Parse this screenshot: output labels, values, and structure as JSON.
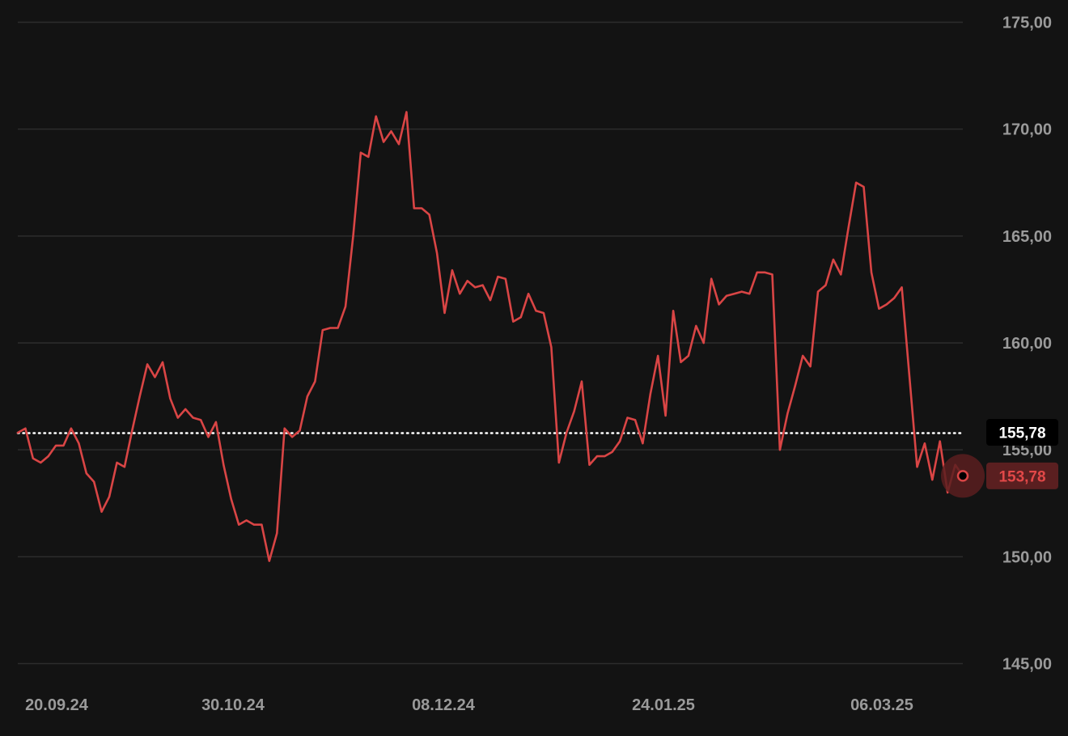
{
  "chart_data": {
    "type": "line",
    "x_ticks": [
      "20.09.24",
      "30.10.24",
      "08.12.24",
      "24.01.25",
      "06.03.25"
    ],
    "y_ticks": [
      "175,00",
      "170,00",
      "165,00",
      "160,00",
      "155,00",
      "150,00",
      "145,00"
    ],
    "ylim": [
      145,
      175
    ],
    "grid": true,
    "series": [
      {
        "values": [
          155.8,
          156.0,
          154.6,
          154.4,
          154.7,
          155.2,
          155.2,
          156.0,
          155.3,
          153.9,
          153.5,
          152.1,
          152.8,
          154.4,
          154.2,
          155.9,
          157.5,
          159.0,
          158.4,
          159.1,
          157.4,
          156.5,
          156.9,
          156.5,
          156.4,
          155.6,
          156.3,
          154.3,
          152.7,
          151.5,
          151.7,
          151.5,
          151.5,
          149.8,
          151.1,
          156.0,
          155.6,
          155.9,
          157.5,
          158.2,
          160.6,
          160.7,
          160.7,
          161.7,
          165.0,
          168.9,
          168.7,
          170.6,
          169.4,
          169.9,
          169.3,
          170.8,
          166.3,
          166.3,
          166.0,
          164.2,
          161.4,
          163.4,
          162.3,
          162.9,
          162.6,
          162.7,
          162.0,
          163.1,
          163.0,
          161.0,
          161.2,
          162.3,
          161.5,
          161.4,
          159.8,
          154.4,
          155.8,
          156.8,
          158.2,
          154.3,
          154.7,
          154.7,
          154.9,
          155.4,
          156.5,
          156.4,
          155.3,
          157.6,
          159.4,
          156.6,
          161.5,
          159.1,
          159.4,
          160.8,
          160.0,
          163.0,
          161.8,
          162.2,
          162.3,
          162.4,
          162.3,
          163.3,
          163.3,
          163.2,
          155.0,
          156.7,
          158.0,
          159.4,
          158.9,
          162.4,
          162.7,
          163.9,
          163.2,
          165.4,
          167.5,
          167.3,
          163.3,
          161.6,
          161.8,
          162.1,
          162.6,
          158.4,
          154.2,
          155.3,
          153.6,
          155.4,
          153.0,
          154.3,
          153.78
        ],
        "color": "#d94545"
      }
    ],
    "reference_line": {
      "value": 155.78,
      "label": "155,78"
    },
    "last_value": {
      "value": 153.78,
      "label": "153,78"
    },
    "colors": {
      "background": "#131313",
      "grid": "#2d2d2d",
      "line": "#d94545",
      "axis_text": "#9a9a9a",
      "reference_badge_bg": "#000000",
      "reference_badge_text": "#ffffff",
      "last_badge_bg": "#5a1f20",
      "last_badge_text": "#e24848"
    }
  }
}
